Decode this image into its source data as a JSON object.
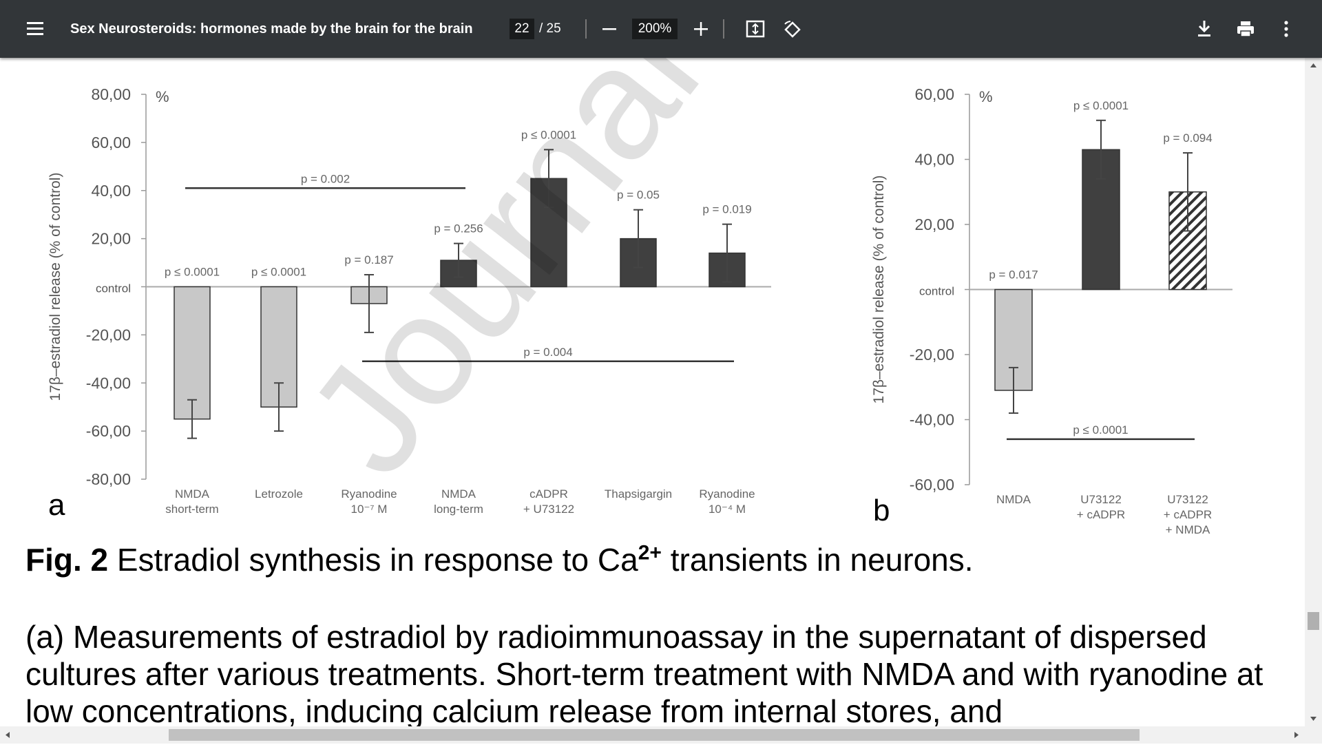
{
  "toolbar": {
    "title": "Sex Neurosteroids: hormones made by the brain for the brain",
    "page": "22",
    "page_total": "/ 25",
    "zoom": "200%"
  },
  "watermark": "Journal Pre-proof",
  "figure": {
    "panel_a": {
      "letter": "a",
      "y_label": "17β–estradiol release (% of control)",
      "unit": "%",
      "ylim": [
        -80,
        80
      ],
      "yticks": [
        {
          "value": 80,
          "label": "80,00"
        },
        {
          "value": 60,
          "label": "60,00"
        },
        {
          "value": 40,
          "label": "40,00"
        },
        {
          "value": 20,
          "label": "20,00"
        },
        {
          "value": 0,
          "label": "control"
        },
        {
          "value": -20,
          "label": "-20,00"
        },
        {
          "value": -40,
          "label": "-40,00"
        },
        {
          "value": -60,
          "label": "-60,00"
        },
        {
          "value": -80,
          "label": "-80,00"
        }
      ],
      "categories": [
        "NMDA short-term",
        "Letrozole",
        "Ryanodine 10⁻⁷ M",
        "NMDA long-term",
        "cADPR + U73122",
        "Thapsigargin",
        "Ryanodine 10⁻⁴ M"
      ],
      "values": [
        -55,
        -50,
        -7,
        11,
        45,
        20,
        14
      ],
      "errors": [
        8,
        10,
        12,
        7,
        12,
        12,
        12
      ],
      "p_labels": [
        "p ≤ 0.0001",
        "p ≤ 0.0001",
        "p = 0.187",
        "p = 0.256",
        "p ≤ 0.0001",
        "p = 0.05",
        "p = 0.019"
      ],
      "colors": [
        "#c8c8c8",
        "#c8c8c8",
        "#c8c8c8",
        "#404040",
        "#404040",
        "#404040",
        "#404040"
      ],
      "brackets": [
        {
          "level": 41,
          "label": "p = 0.002"
        },
        {
          "level": -31,
          "label": "p = 0.004"
        }
      ]
    },
    "panel_b": {
      "letter": "b",
      "y_label": "17β–estradiol release (% of control)",
      "unit": "%",
      "ylim": [
        -60,
        60
      ],
      "yticks": [
        {
          "value": 60,
          "label": "60,00"
        },
        {
          "value": 40,
          "label": "40,00"
        },
        {
          "value": 20,
          "label": "20,00"
        },
        {
          "value": 0,
          "label": "control"
        },
        {
          "value": -20,
          "label": "-20,00"
        },
        {
          "value": -40,
          "label": "-40,00"
        },
        {
          "value": -60,
          "label": "-60,00"
        }
      ],
      "categories": [
        "NMDA",
        "U73122 + cADPR",
        "U73122 + cADPR + NMDA"
      ],
      "values": [
        -31,
        43,
        30
      ],
      "errors": [
        7,
        9,
        12
      ],
      "p_labels": [
        "p = 0.017",
        "p ≤ 0.0001",
        "p = 0.094"
      ],
      "colors": [
        "#c8c8c8",
        "#404040",
        "hatch"
      ],
      "brackets": [
        {
          "level": -46,
          "label": "p ≤ 0.0001"
        }
      ]
    }
  },
  "caption": {
    "label": "Fig. 2",
    "text": " Estradiol synthesis in response to Ca",
    "sup": "2+",
    "text_end": " transients in neurons."
  },
  "paragraph": "(a) Measurements of estradiol by radioimmunoassay in the supernatant of dispersed cultures after various treatments. Short-term treatment with NMDA and with ryanodine at low concentrations, inducing calcium release from internal stores, and"
}
